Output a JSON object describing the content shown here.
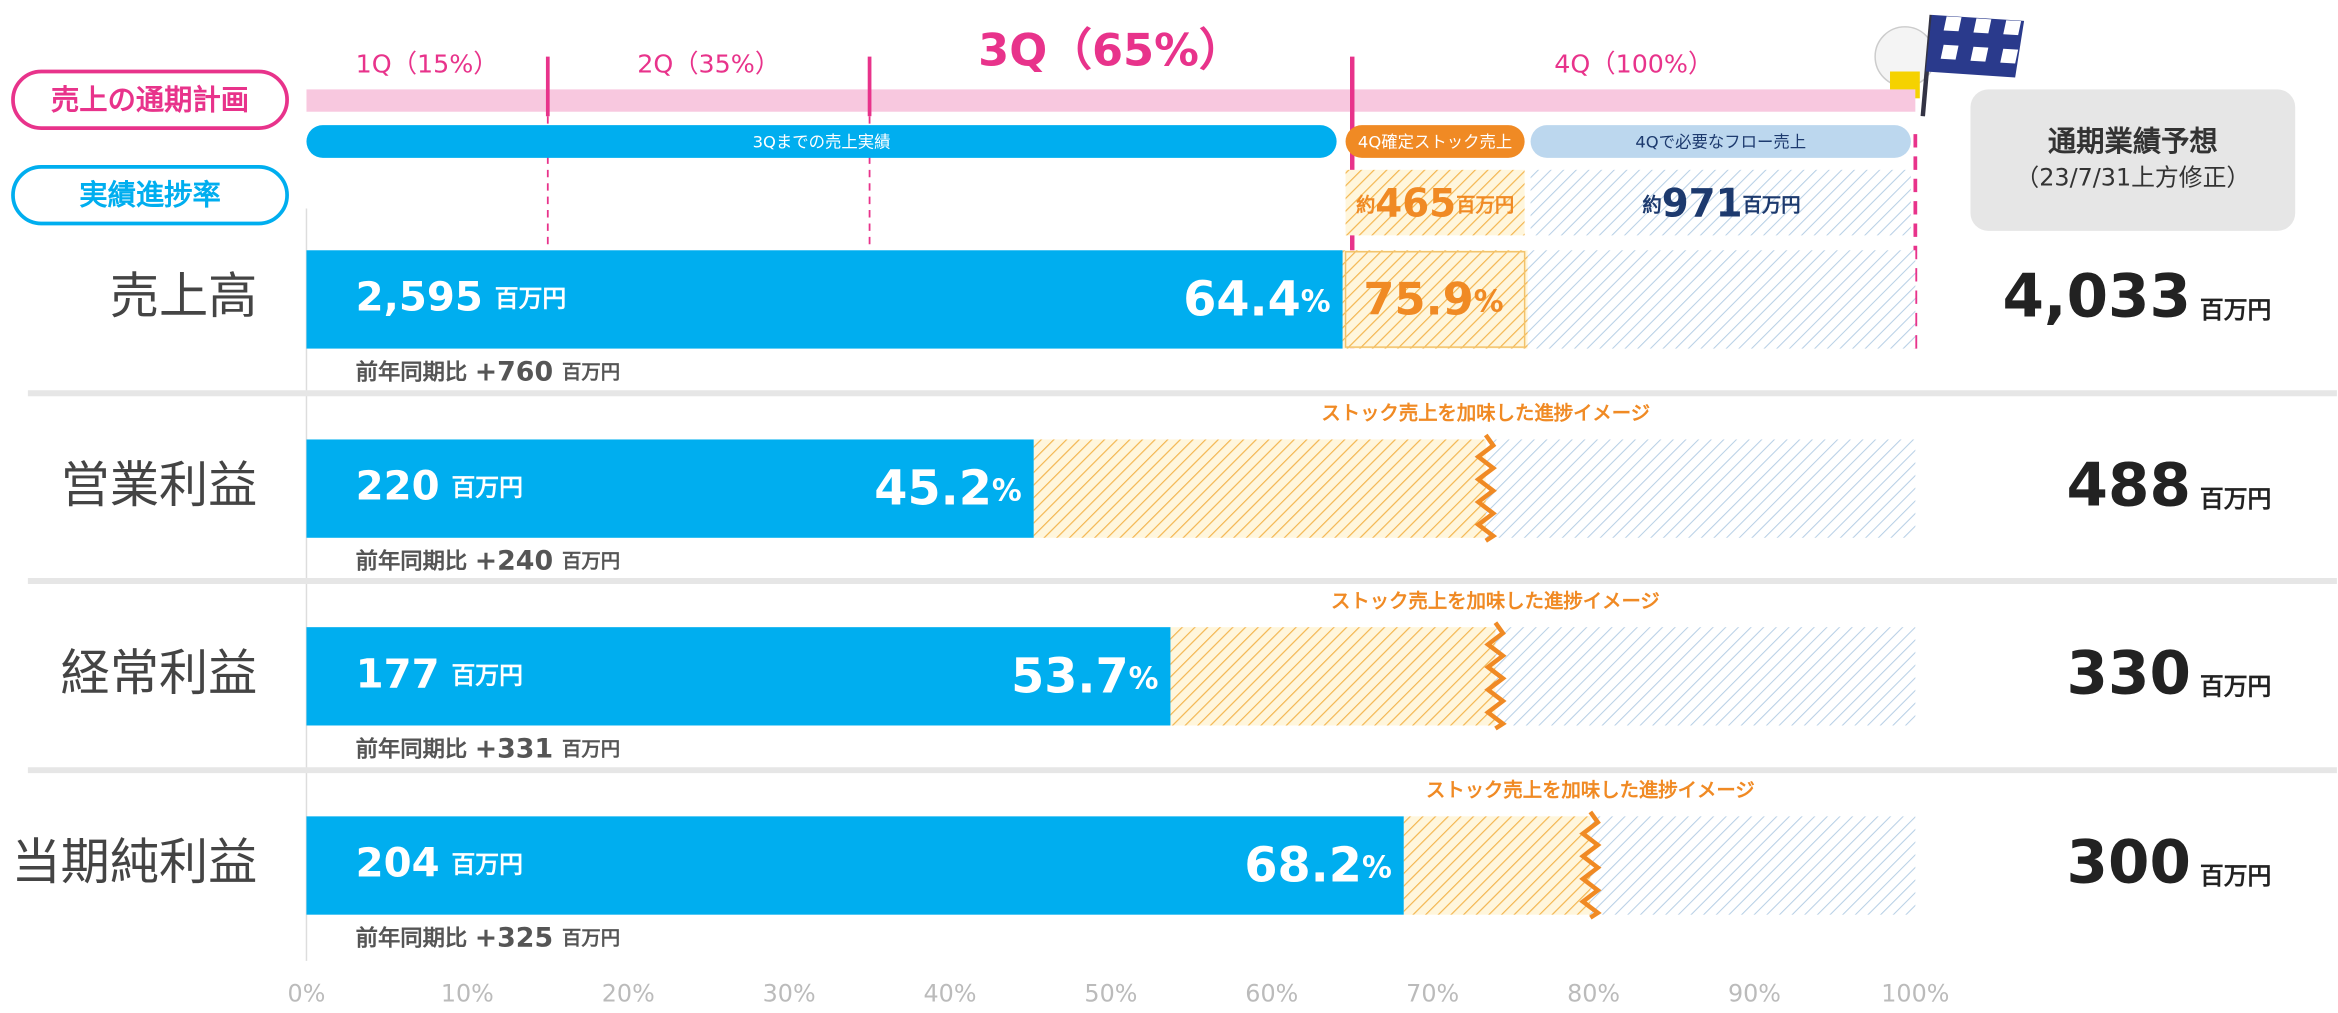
{
  "chart_data": {
    "type": "progress",
    "plan_label": "売上の通期計画",
    "progress_label": "実績進捗率",
    "forecast_header": "通期業績予想",
    "forecast_note": "（23/7/31上方修正）",
    "unit": "百万円",
    "pct_unit": "%",
    "yoy_prefix": "前年同期比",
    "approx": "約",
    "quarters": [
      {
        "value": 15,
        "label": "1Q（15%）"
      },
      {
        "value": 35,
        "label": "2Q（35%）"
      },
      {
        "value": 65,
        "label": "3Q（65%）"
      },
      {
        "value": 100,
        "label": "4Q（100%）"
      }
    ],
    "legend": [
      "3Qまでの売上実績",
      "4Q確定ストック売上",
      "4Qで必要なフロー売上"
    ],
    "stock_amount": 465,
    "flow_amount": 971,
    "categories": [
      "売上高",
      "営業利益",
      "経常利益",
      "当期純利益"
    ],
    "actual": {
      "values": [
        2595,
        220,
        177,
        204
      ],
      "value_labels": [
        "2,595",
        "220",
        "177",
        "204"
      ]
    },
    "progress": [
      64.4,
      45.2,
      53.7,
      68.2
    ],
    "stock_progress": [
      75.9,
      73.3,
      73.9,
      79.8
    ],
    "notes": [
      null,
      "ストック売上を加味した進捗イメージ",
      "ストック売上を加味した進捗イメージ",
      "ストック売上を加味した進捗イメージ"
    ],
    "yoy": {
      "values": [
        760,
        240,
        331,
        325
      ],
      "value_labels": [
        "+760",
        "+240",
        "+331",
        "+325"
      ]
    },
    "forecast": {
      "values": [
        4033,
        488,
        330,
        300
      ],
      "value_labels": [
        "4,033",
        "488",
        "330",
        "300"
      ]
    },
    "xlim": [
      0,
      100
    ],
    "xticks": [
      {
        "value": 0,
        "label": "0%"
      },
      {
        "value": 10,
        "label": "10%"
      },
      {
        "value": 20,
        "label": "20%"
      },
      {
        "value": 30,
        "label": "30%"
      },
      {
        "value": 40,
        "label": "40%"
      },
      {
        "value": 50,
        "label": "50%"
      },
      {
        "value": 60,
        "label": "60%"
      },
      {
        "value": 70,
        "label": "70%"
      },
      {
        "value": 80,
        "label": "80%"
      },
      {
        "value": 90,
        "label": "90%"
      },
      {
        "value": 100,
        "label": "100%"
      }
    ],
    "colors": {
      "actual": "#00aeef",
      "stock": "#f08a24",
      "flow": "#bcd7ee",
      "plan": "#e8338b",
      "plan_band": "#f8c8df"
    }
  }
}
